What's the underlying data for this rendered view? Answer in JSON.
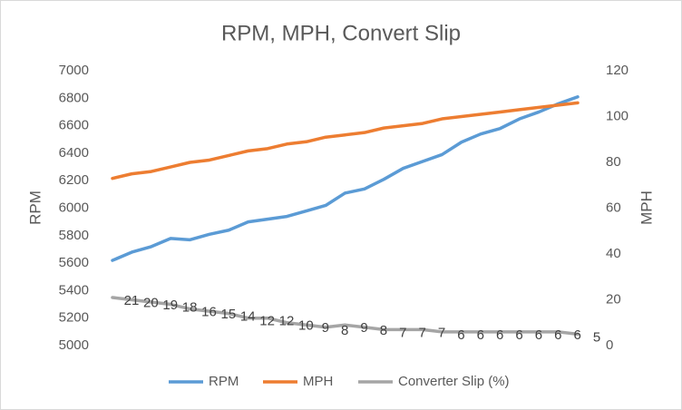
{
  "chart_data": {
    "type": "line",
    "title": "RPM, MPH, Convert Slip",
    "y_label": "RPM",
    "y2_label": "MPH",
    "ylim": [
      5000,
      7000
    ],
    "yticks": [
      5000,
      5200,
      5400,
      5600,
      5800,
      6000,
      6200,
      6400,
      6600,
      6800,
      7000
    ],
    "y2lim": [
      0,
      120
    ],
    "y2ticks": [
      0,
      20,
      40,
      60,
      80,
      100,
      120
    ],
    "grid": false,
    "legend": "bottom",
    "series": [
      {
        "name": "RPM",
        "color": "#5b9bd5",
        "values": [
          5620,
          5680,
          5720,
          5780,
          5770,
          5810,
          5840,
          5900,
          5920,
          5940,
          5980,
          6020,
          6110,
          6140,
          6210,
          6290,
          6340,
          6390,
          6480,
          6540,
          6580,
          6650,
          6700,
          6760,
          6810
        ]
      },
      {
        "name": "MPH",
        "color": "#ed7d31",
        "axis": "y2",
        "values": [
          73,
          75,
          76,
          78,
          80,
          81,
          83,
          85,
          86,
          88,
          89,
          91,
          92,
          93,
          95,
          96,
          97,
          99,
          100,
          101,
          102,
          103,
          104,
          105,
          106
        ]
      },
      {
        "name": "Converter Slip (%)",
        "color": "#a5a5a5",
        "axis": "y2",
        "data_labels": true,
        "values": [
          21,
          20,
          19,
          18,
          16,
          15,
          14,
          12,
          12,
          10,
          9,
          8,
          9,
          8,
          7,
          7,
          7,
          6,
          6,
          6,
          6,
          6,
          6,
          6,
          5
        ]
      }
    ]
  }
}
